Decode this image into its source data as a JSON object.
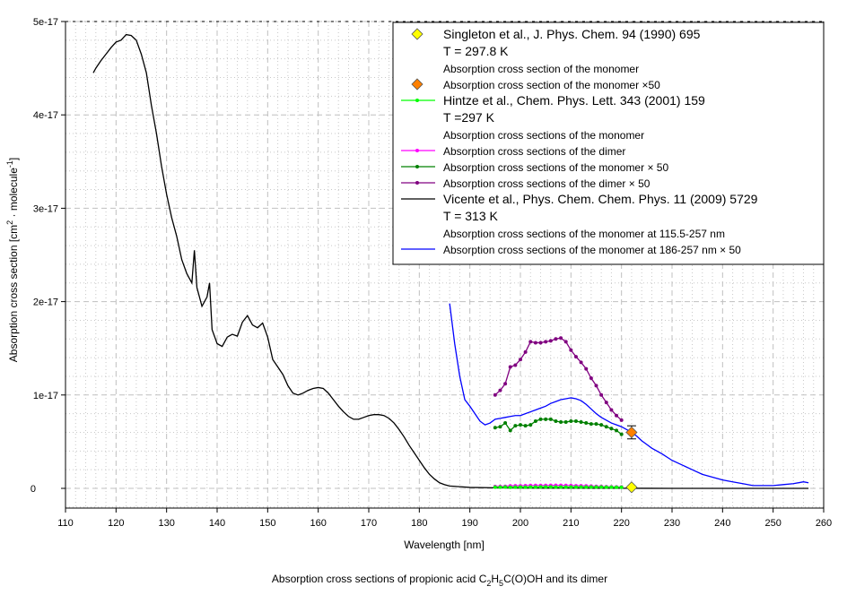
{
  "chart_data": {
    "type": "line",
    "title": "Absorption cross sections of propionic acid C2H5C(O)OH and its dimer",
    "title_parts": {
      "prefix": "Absorption cross sections of propionic acid C",
      "sub1": "2",
      "mid": "H",
      "sub2": "5",
      "suffix": "C(O)OH and its dimer"
    },
    "xlabel": "Wavelength [nm]",
    "ylabel_parts": {
      "a": "Absorption cross section [cm",
      "sup1": "2",
      "b": " · molecule",
      "sup2": "-1",
      "c": "]"
    },
    "xlim": [
      110,
      260
    ],
    "ylim": [
      -2e-18,
      5e-17
    ],
    "grid": true,
    "x_ticks": [
      110,
      120,
      130,
      140,
      150,
      160,
      170,
      180,
      190,
      200,
      210,
      220,
      230,
      240,
      250,
      260
    ],
    "x_tick_labels": [
      "110",
      "120",
      "130",
      "140",
      "150",
      "160",
      "170",
      "180",
      "190",
      "200",
      "210",
      "220",
      "230",
      "240",
      "250",
      "260"
    ],
    "y_ticks": [
      0,
      1e-17,
      2e-17,
      3e-17,
      4e-17,
      5e-17
    ],
    "y_tick_labels": [
      "0",
      "1e-17",
      "2e-17",
      "3e-17",
      "4e-17",
      "5e-17"
    ],
    "legend_placement": "top-right",
    "legend": [
      {
        "id": "singleton",
        "text": "Singleton et al., J. Phys. Chem. 94 (1990) 695",
        "big": true,
        "marker": "diamond",
        "color": "#FFFF00"
      },
      {
        "id": "singleton_T",
        "text": "T = 297.8 K",
        "big": true
      },
      {
        "id": "singleton_desc",
        "text": "Absorption cross section of the monomer",
        "big": false
      },
      {
        "id": "singleton50",
        "text": "Absorption cross section of the monomer ×50",
        "big": false,
        "marker": "diamond",
        "color": "#FF8000"
      },
      {
        "id": "hintze",
        "text": "Hintze et al., Chem. Phys. Lett. 343 (2001) 159",
        "big": true,
        "marker": "line-dot",
        "color": "#00FF00"
      },
      {
        "id": "hintze_T",
        "text": "T =297 K",
        "big": true
      },
      {
        "id": "hintze_desc",
        "text": "Absorption cross sections of the monomer",
        "big": false
      },
      {
        "id": "hintze_dimer",
        "text": "Absorption cross sections of the dimer",
        "big": false,
        "marker": "line-dot",
        "color": "#FF00FF"
      },
      {
        "id": "hintze_mono50",
        "text": "Absorption cross sections of the monomer × 50",
        "big": false,
        "marker": "line-dot",
        "color": "#008000"
      },
      {
        "id": "hintze_dimer50",
        "text": "Absorption cross sections of the dimer × 50",
        "big": false,
        "marker": "line-dot",
        "color": "#800080"
      },
      {
        "id": "vicente",
        "text": "Vicente et al., Phys. Chem. Chem. Phys. 11 (2009) 5729",
        "big": true,
        "marker": "line",
        "color": "#000000"
      },
      {
        "id": "vicente_T",
        "text": "T = 313 K",
        "big": true
      },
      {
        "id": "vicente_desc",
        "text": "Absorption cross sections of the monomer at 115.5-257 nm",
        "big": false
      },
      {
        "id": "vicente50",
        "text": "Absorption cross sections of the monomer at 186-257 nm × 50",
        "big": false,
        "marker": "line",
        "color": "#0000FF"
      }
    ],
    "series": [
      {
        "name": "Vicente et al. monomer 115.5-257 nm",
        "color": "#000000",
        "style": "line",
        "x": [
          115.5,
          116,
          117,
          118,
          119,
          120,
          121,
          122,
          123,
          124,
          125,
          126,
          127,
          128,
          129,
          130,
          131,
          132,
          133,
          134,
          135,
          135.5,
          136,
          137,
          138,
          138.5,
          139,
          140,
          141,
          142,
          143,
          144,
          145,
          146,
          147,
          148,
          149,
          150,
          151,
          152,
          153,
          154,
          155,
          156,
          157,
          158,
          159,
          160,
          161,
          162,
          163,
          164,
          165,
          166,
          167,
          168,
          169,
          170,
          171,
          172,
          173,
          174,
          175,
          176,
          177,
          178,
          179,
          180,
          181,
          182,
          183,
          184,
          185,
          186,
          188,
          190,
          195,
          200,
          205,
          210,
          215,
          220,
          225,
          230,
          235,
          240,
          245,
          250,
          255,
          257
        ],
        "y": [
          4.45e-17,
          4.5e-17,
          4.58e-17,
          4.65e-17,
          4.72e-17,
          4.78e-17,
          4.8e-17,
          4.86e-17,
          4.85e-17,
          4.8e-17,
          4.65e-17,
          4.45e-17,
          4.1e-17,
          3.8e-17,
          3.45e-17,
          3.15e-17,
          2.9e-17,
          2.7e-17,
          2.45e-17,
          2.3e-17,
          2.2e-17,
          2.55e-17,
          2.15e-17,
          1.95e-17,
          2.05e-17,
          2.2e-17,
          1.7e-17,
          1.55e-17,
          1.52e-17,
          1.62e-17,
          1.65e-17,
          1.63e-17,
          1.78e-17,
          1.85e-17,
          1.75e-17,
          1.72e-17,
          1.77e-17,
          1.62e-17,
          1.38e-17,
          1.3e-17,
          1.22e-17,
          1.1e-17,
          1.02e-17,
          1e-17,
          1.02e-17,
          1.05e-17,
          1.07e-17,
          1.08e-17,
          1.07e-17,
          1.02e-17,
          9.5e-18,
          8.8e-18,
          8.2e-18,
          7.7e-18,
          7.4e-18,
          7.4e-18,
          7.6e-18,
          7.8e-18,
          7.9e-18,
          7.9e-18,
          7.8e-18,
          7.5e-18,
          7e-18,
          6.3e-18,
          5.5e-18,
          4.6e-18,
          3.8e-18,
          3e-18,
          2.2e-18,
          1.5e-18,
          1e-18,
          6e-19,
          4e-19,
          2.5e-19,
          1.8e-19,
          1e-19,
          6e-20,
          4e-20,
          3e-20,
          3e-20,
          2e-20,
          1e-20,
          5e-21,
          2e-21,
          1e-21,
          1e-21,
          0,
          0,
          0,
          0
        ]
      },
      {
        "name": "Vicente et al. monomer 186-257 nm × 50",
        "color": "#0000FF",
        "style": "line",
        "x": [
          186,
          187,
          188,
          189,
          190,
          191,
          192,
          193,
          194,
          195,
          196,
          197,
          198,
          199,
          200,
          201,
          202,
          203,
          204,
          205,
          206,
          207,
          208,
          209,
          210,
          211,
          212,
          213,
          214,
          215,
          216,
          217,
          218,
          219,
          220,
          221,
          222,
          223,
          224,
          225,
          226,
          228,
          230,
          232,
          234,
          236,
          238,
          240,
          242,
          244,
          246,
          248,
          250,
          252,
          254,
          256,
          257
        ],
        "y": [
          1.98e-17,
          1.55e-17,
          1.2e-17,
          9.5e-18,
          8.8e-18,
          8e-18,
          7.2e-18,
          6.8e-18,
          7e-18,
          7.4e-18,
          7.5e-18,
          7.6e-18,
          7.7e-18,
          7.8e-18,
          7.8e-18,
          8e-18,
          8.2e-18,
          8.4e-18,
          8.6e-18,
          8.8e-18,
          9.1e-18,
          9.3e-18,
          9.5e-18,
          9.6e-18,
          9.7e-18,
          9.6e-18,
          9.4e-18,
          9e-18,
          8.5e-18,
          8e-18,
          7.6e-18,
          7.3e-18,
          7e-18,
          6.8e-18,
          6.6e-18,
          6.3e-18,
          6e-18,
          5.6e-18,
          5.1e-18,
          4.7e-18,
          4.3e-18,
          3.7e-18,
          3e-18,
          2.5e-18,
          2e-18,
          1.5e-18,
          1.2e-18,
          9e-19,
          7e-19,
          5e-19,
          3e-19,
          3e-19,
          3e-19,
          4e-19,
          5e-19,
          7e-19,
          6e-19
        ]
      },
      {
        "name": "Hintze et al. dimer × 50",
        "color": "#800080",
        "style": "line-dot",
        "x": [
          195,
          196,
          197,
          198,
          199,
          200,
          201,
          202,
          203,
          204,
          205,
          206,
          207,
          208,
          209,
          210,
          211,
          212,
          213,
          214,
          215,
          216,
          217,
          218,
          219,
          220
        ],
        "y": [
          1e-17,
          1.05e-17,
          1.12e-17,
          1.3e-17,
          1.32e-17,
          1.38e-17,
          1.46e-17,
          1.57e-17,
          1.56e-17,
          1.56e-17,
          1.57e-17,
          1.58e-17,
          1.6e-17,
          1.61e-17,
          1.57e-17,
          1.48e-17,
          1.41e-17,
          1.35e-17,
          1.28e-17,
          1.18e-17,
          1.1e-17,
          1e-17,
          9.2e-18,
          8.4e-18,
          7.8e-18,
          7.3e-18
        ]
      },
      {
        "name": "Hintze et al. monomer × 50",
        "color": "#008000",
        "style": "line-dot",
        "x": [
          195,
          196,
          197,
          198,
          199,
          200,
          201,
          202,
          203,
          204,
          205,
          206,
          207,
          208,
          209,
          210,
          211,
          212,
          213,
          214,
          215,
          216,
          217,
          218,
          219,
          220
        ],
        "y": [
          6.5e-18,
          6.6e-18,
          7e-18,
          6.2e-18,
          6.7e-18,
          6.8e-18,
          6.7e-18,
          6.8e-18,
          7.2e-18,
          7.4e-18,
          7.4e-18,
          7.4e-18,
          7.2e-18,
          7.1e-18,
          7.1e-18,
          7.2e-18,
          7.2e-18,
          7.1e-18,
          7e-18,
          6.9e-18,
          6.9e-18,
          6.8e-18,
          6.6e-18,
          6.4e-18,
          6.2e-18,
          5.8e-18
        ]
      },
      {
        "name": "Hintze et al. dimer",
        "color": "#FF00FF",
        "style": "line-dot",
        "x": [
          195,
          196,
          197,
          198,
          199,
          200,
          201,
          202,
          203,
          204,
          205,
          206,
          207,
          208,
          209,
          210,
          211,
          212,
          213,
          214,
          215,
          216,
          217,
          218,
          219,
          220
        ],
        "y": [
          2e-19,
          2e-19,
          2.2e-19,
          2.6e-19,
          2.7e-19,
          2.8e-19,
          2.9e-19,
          3.1e-19,
          3.1e-19,
          3.1e-19,
          3.1e-19,
          3.2e-19,
          3.2e-19,
          3.2e-19,
          3.1e-19,
          3e-19,
          2.8e-19,
          2.7e-19,
          2.6e-19,
          2.4e-19,
          2.2e-19,
          2e-19,
          1.8e-19,
          1.7e-19,
          1.6e-19,
          1.5e-19
        ]
      },
      {
        "name": "Hintze et al. monomer",
        "color": "#00FF00",
        "style": "line-dot",
        "x": [
          195,
          196,
          197,
          198,
          199,
          200,
          201,
          202,
          203,
          204,
          205,
          206,
          207,
          208,
          209,
          210,
          211,
          212,
          213,
          214,
          215,
          216,
          217,
          218,
          219,
          220
        ],
        "y": [
          1.3e-19,
          1.3e-19,
          1.4e-19,
          1.2e-19,
          1.3e-19,
          1.4e-19,
          1.3e-19,
          1.4e-19,
          1.4e-19,
          1.5e-19,
          1.5e-19,
          1.5e-19,
          1.4e-19,
          1.4e-19,
          1.4e-19,
          1.4e-19,
          1.4e-19,
          1.4e-19,
          1.4e-19,
          1.4e-19,
          1.4e-19,
          1.4e-19,
          1.3e-19,
          1.3e-19,
          1.2e-19,
          1.2e-19
        ]
      },
      {
        "name": "Singleton et al. monomer",
        "color": "#FFFF00",
        "style": "diamond",
        "x": [
          222
        ],
        "y": [
          1.2e-19
        ]
      },
      {
        "name": "Singleton et al. monomer ×50",
        "color": "#FF8000",
        "style": "diamond-errorbar",
        "x": [
          222
        ],
        "y": [
          6e-18
        ],
        "error": [
          7e-19
        ]
      }
    ]
  }
}
